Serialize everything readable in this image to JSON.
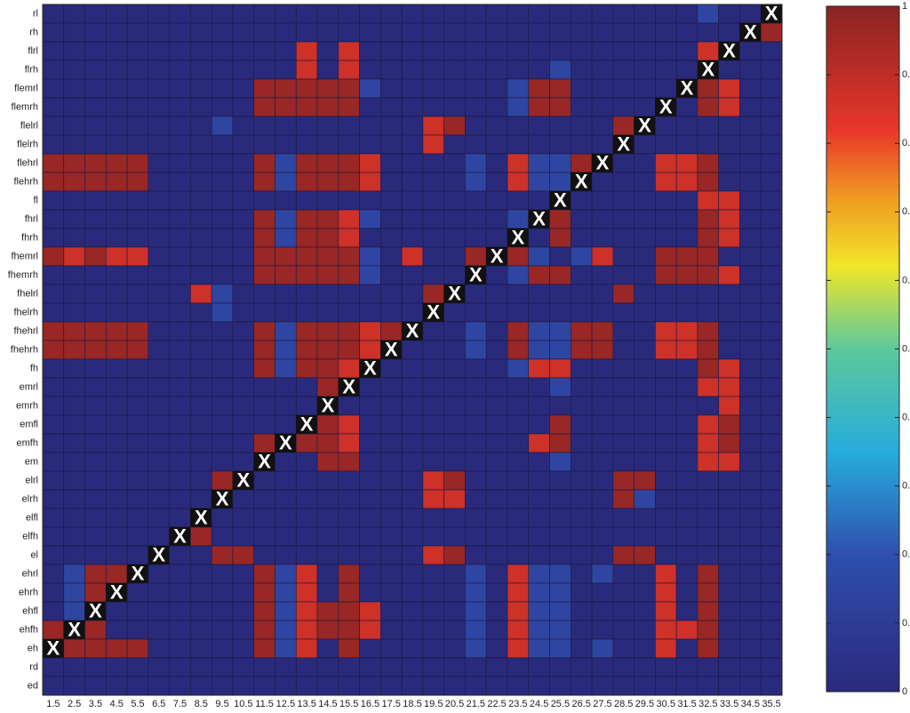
{
  "chart_data": {
    "type": "heatmap",
    "diagonal_marker": "X",
    "x": [
      1.5,
      2.5,
      3.5,
      4.5,
      5.5,
      6.5,
      7.5,
      8.5,
      9.5,
      10.5,
      11.5,
      12.5,
      13.5,
      14.5,
      15.5,
      16.5,
      17.5,
      18.5,
      19.5,
      20.5,
      21.5,
      22.5,
      23.5,
      24.5,
      25.5,
      26.5,
      27.5,
      28.5,
      29.5,
      30.5,
      31.5,
      32.5,
      33.5,
      34.5,
      35.5
    ],
    "y": [
      "rl",
      "rh",
      "flrl",
      "flrh",
      "flemrl",
      "flemrh",
      "flelrl",
      "flelrh",
      "flehrl",
      "flehrh",
      "fl",
      "fhrl",
      "fhrh",
      "fhemrl",
      "fhemrh",
      "fhelrl",
      "fhelrh",
      "fhehrl",
      "fhehrh",
      "fh",
      "emrl",
      "emrh",
      "emfl",
      "emfh",
      "em",
      "elrl",
      "elrh",
      "elfl",
      "elfh",
      "el",
      "ehrl",
      "ehrh",
      "ehfl",
      "ehfh",
      "eh",
      "rd",
      "ed"
    ],
    "z": [
      [
        0,
        0,
        0,
        0,
        0,
        0,
        0,
        0,
        0,
        0,
        0,
        0,
        0,
        0,
        0,
        0,
        0,
        0,
        0,
        0,
        0,
        0,
        0,
        0,
        0,
        0,
        0,
        0,
        0,
        0,
        0,
        0.15,
        0,
        0,
        null
      ],
      [
        0,
        0,
        0,
        0,
        0,
        0,
        0,
        0,
        0,
        0,
        0,
        0,
        0,
        0,
        0,
        0,
        0,
        0,
        0,
        0,
        0,
        0,
        0,
        0,
        0,
        0,
        0,
        0,
        0,
        0,
        0,
        0,
        0,
        null,
        0.97
      ],
      [
        0,
        0,
        0,
        0,
        0,
        0,
        0,
        0,
        0,
        0,
        0,
        0,
        0.87,
        0,
        0.87,
        0,
        0,
        0,
        0,
        0,
        0,
        0,
        0,
        0,
        0,
        0,
        0,
        0,
        0,
        0,
        0,
        0.87,
        null,
        0,
        0
      ],
      [
        0,
        0,
        0,
        0,
        0,
        0,
        0,
        0,
        0,
        0,
        0,
        0,
        0.87,
        0,
        0.87,
        0,
        0,
        0,
        0,
        0,
        0,
        0,
        0,
        0,
        0.15,
        0,
        0,
        0,
        0,
        0,
        0,
        null,
        0,
        0,
        0
      ],
      [
        0,
        0,
        0,
        0,
        0,
        0,
        0,
        0,
        0,
        0,
        0.97,
        0.97,
        0.97,
        0.97,
        0.97,
        0.15,
        0,
        0,
        0,
        0,
        0,
        0,
        0.15,
        0.97,
        0.97,
        0,
        0,
        0,
        0,
        0,
        null,
        0.97,
        0.87,
        0,
        0
      ],
      [
        0,
        0,
        0,
        0,
        0,
        0,
        0,
        0,
        0,
        0,
        0.97,
        0.97,
        0.97,
        0.97,
        0.97,
        0,
        0,
        0,
        0,
        0,
        0,
        0,
        0.15,
        0.97,
        0.97,
        0,
        0,
        0,
        0,
        null,
        0,
        0.97,
        0.87,
        0,
        0
      ],
      [
        0,
        0,
        0,
        0,
        0,
        0,
        0,
        0,
        0.15,
        0,
        0,
        0,
        0,
        0,
        0,
        0,
        0,
        0,
        0.87,
        0.97,
        0,
        0,
        0,
        0,
        0,
        0,
        0,
        0.97,
        null,
        0,
        0,
        0,
        0,
        0,
        0
      ],
      [
        0,
        0,
        0,
        0,
        0,
        0,
        0,
        0,
        0,
        0,
        0,
        0,
        0,
        0,
        0,
        0,
        0,
        0,
        0.87,
        0,
        0,
        0,
        0,
        0,
        0,
        0,
        0,
        null,
        0,
        0,
        0,
        0,
        0,
        0,
        0
      ],
      [
        0.97,
        0.97,
        0.97,
        0.97,
        0.97,
        0,
        0,
        0,
        0,
        0,
        0.97,
        0.15,
        0.97,
        0.97,
        0.97,
        0.87,
        0,
        0,
        0,
        0,
        0.15,
        0,
        0.87,
        0.15,
        0.15,
        0.97,
        null,
        0,
        0,
        0.87,
        0.87,
        0.97,
        0,
        0,
        0
      ],
      [
        0.97,
        0.97,
        0.97,
        0.97,
        0.97,
        0,
        0,
        0,
        0,
        0,
        0.97,
        0.15,
        0.97,
        0.97,
        0.97,
        0.87,
        0,
        0,
        0,
        0,
        0.15,
        0,
        0.87,
        0.15,
        0.15,
        null,
        0,
        0,
        0,
        0.87,
        0.87,
        0.97,
        0,
        0,
        0
      ],
      [
        0,
        0,
        0,
        0,
        0,
        0,
        0,
        0,
        0,
        0,
        0,
        0,
        0,
        0,
        0,
        0,
        0,
        0,
        0,
        0,
        0,
        0,
        0,
        0,
        null,
        0,
        0,
        0,
        0,
        0,
        0,
        0.87,
        0.87,
        0,
        0
      ],
      [
        0,
        0,
        0,
        0,
        0,
        0,
        0,
        0,
        0,
        0,
        0.97,
        0.15,
        0.97,
        0.97,
        0.87,
        0.15,
        0,
        0,
        0,
        0,
        0,
        0,
        0.15,
        null,
        0.97,
        0,
        0,
        0,
        0,
        0,
        0,
        0.97,
        0.87,
        0,
        0
      ],
      [
        0,
        0,
        0,
        0,
        0,
        0,
        0,
        0,
        0,
        0,
        0.97,
        0.15,
        0.97,
        0.97,
        0.87,
        0,
        0,
        0,
        0,
        0,
        0,
        0,
        null,
        0,
        0.97,
        0,
        0,
        0,
        0,
        0,
        0,
        0.97,
        0.87,
        0,
        0
      ],
      [
        0.97,
        0.87,
        0.97,
        0.87,
        0.87,
        0,
        0,
        0,
        0,
        0,
        0.97,
        0.97,
        0.97,
        0.97,
        0.97,
        0.15,
        0,
        0.87,
        0,
        0,
        0.97,
        null,
        0.97,
        0.15,
        0,
        0.15,
        0.87,
        0,
        0,
        0.97,
        0.97,
        0.97,
        0,
        0,
        0
      ],
      [
        0,
        0,
        0,
        0,
        0,
        0,
        0,
        0,
        0,
        0,
        0.97,
        0.97,
        0.97,
        0.97,
        0.97,
        0.15,
        0,
        0,
        0,
        0,
        null,
        0,
        0.15,
        0.97,
        0.97,
        0,
        0,
        0,
        0,
        0.97,
        0.97,
        0.97,
        0.87,
        0,
        0
      ],
      [
        0,
        0,
        0,
        0,
        0,
        0,
        0,
        0.87,
        0.15,
        0,
        0,
        0,
        0,
        0,
        0,
        0,
        0,
        0,
        0.97,
        null,
        0,
        0,
        0,
        0,
        0,
        0,
        0,
        0.97,
        0,
        0,
        0,
        0,
        0,
        0,
        0
      ],
      [
        0,
        0,
        0,
        0,
        0,
        0,
        0,
        0,
        0.15,
        0,
        0,
        0,
        0,
        0,
        0,
        0,
        0,
        0,
        null,
        0,
        0,
        0,
        0,
        0,
        0,
        0,
        0,
        0,
        0,
        0,
        0,
        0,
        0,
        0,
        0
      ],
      [
        0.97,
        0.97,
        0.97,
        0.97,
        0.97,
        0,
        0,
        0,
        0,
        0,
        0.97,
        0.15,
        0.97,
        0.97,
        0.97,
        0.87,
        0.97,
        null,
        0,
        0,
        0.15,
        0,
        0.97,
        0.15,
        0.15,
        0.97,
        0.97,
        0,
        0,
        0.87,
        0.87,
        0.97,
        0,
        0,
        0
      ],
      [
        0.97,
        0.97,
        0.97,
        0.97,
        0.97,
        0,
        0,
        0,
        0,
        0,
        0.97,
        0.15,
        0.97,
        0.97,
        0.97,
        0.87,
        null,
        0,
        0,
        0,
        0.15,
        0,
        0.97,
        0.15,
        0.15,
        0.97,
        0.97,
        0,
        0,
        0.87,
        0.87,
        0.97,
        0,
        0,
        0
      ],
      [
        0,
        0,
        0,
        0,
        0,
        0,
        0,
        0,
        0,
        0,
        0.97,
        0.15,
        0.97,
        0.97,
        0.87,
        null,
        0,
        0,
        0,
        0,
        0,
        0,
        0.15,
        0.87,
        0.87,
        0,
        0,
        0,
        0,
        0,
        0,
        0.97,
        0.87,
        0,
        0
      ],
      [
        0,
        0,
        0,
        0,
        0,
        0,
        0,
        0,
        0,
        0,
        0,
        0,
        0,
        0.97,
        null,
        0,
        0,
        0,
        0,
        0,
        0,
        0,
        0,
        0,
        0.15,
        0,
        0,
        0,
        0,
        0,
        0,
        0.87,
        0.87,
        0,
        0
      ],
      [
        0,
        0,
        0,
        0,
        0,
        0,
        0,
        0,
        0,
        0,
        0,
        0,
        0,
        null,
        0,
        0,
        0,
        0,
        0,
        0,
        0,
        0,
        0,
        0,
        0,
        0,
        0,
        0,
        0,
        0,
        0,
        0,
        0.87,
        0,
        0
      ],
      [
        0,
        0,
        0,
        0,
        0,
        0,
        0,
        0,
        0,
        0,
        0,
        0,
        null,
        0.97,
        0.87,
        0,
        0,
        0,
        0,
        0,
        0,
        0,
        0,
        0,
        0.97,
        0,
        0,
        0,
        0,
        0,
        0,
        0.87,
        0.97,
        0,
        0
      ],
      [
        0,
        0,
        0,
        0,
        0,
        0,
        0,
        0,
        0,
        0,
        0.97,
        null,
        0.97,
        0.97,
        0.87,
        0,
        0,
        0,
        0,
        0,
        0,
        0,
        0,
        0.87,
        0.97,
        0,
        0,
        0,
        0,
        0,
        0,
        0.87,
        0.97,
        0,
        0
      ],
      [
        0,
        0,
        0,
        0,
        0,
        0,
        0,
        0,
        0,
        0,
        null,
        0,
        0,
        0.97,
        0.97,
        0,
        0,
        0,
        0,
        0,
        0,
        0,
        0,
        0,
        0.15,
        0,
        0,
        0,
        0,
        0,
        0,
        0.87,
        0.87,
        0,
        0
      ],
      [
        0,
        0,
        0,
        0,
        0,
        0,
        0,
        0,
        0.97,
        null,
        0,
        0,
        0,
        0,
        0,
        0,
        0,
        0,
        0.87,
        0.97,
        0,
        0,
        0,
        0,
        0,
        0,
        0,
        0.97,
        0.97,
        0,
        0,
        0,
        0,
        0,
        0
      ],
      [
        0,
        0,
        0,
        0,
        0,
        0,
        0,
        0,
        null,
        0,
        0,
        0,
        0,
        0,
        0,
        0,
        0,
        0,
        0.87,
        0.87,
        0,
        0,
        0,
        0,
        0,
        0,
        0,
        0.97,
        0.15,
        0,
        0,
        0,
        0,
        0,
        0
      ],
      [
        0,
        0,
        0,
        0,
        0,
        0,
        0,
        null,
        0,
        0,
        0,
        0,
        0,
        0,
        0,
        0,
        0,
        0,
        0,
        0,
        0,
        0,
        0,
        0,
        0,
        0,
        0,
        0,
        0,
        0,
        0,
        0,
        0,
        0,
        0
      ],
      [
        0,
        0,
        0,
        0,
        0,
        0,
        null,
        0.97,
        0,
        0,
        0,
        0,
        0,
        0,
        0,
        0,
        0,
        0,
        0,
        0,
        0,
        0,
        0,
        0,
        0,
        0,
        0,
        0,
        0,
        0,
        0,
        0,
        0,
        0,
        0
      ],
      [
        0,
        0,
        0,
        0,
        0,
        null,
        0,
        0,
        0.97,
        0.97,
        0,
        0,
        0,
        0,
        0,
        0,
        0,
        0,
        0.87,
        0.97,
        0,
        0,
        0,
        0,
        0,
        0,
        0,
        0.97,
        0.97,
        0,
        0,
        0,
        0,
        0,
        0
      ],
      [
        0,
        0.15,
        0.97,
        0.97,
        null,
        0,
        0,
        0,
        0,
        0,
        0.97,
        0.15,
        0.87,
        0,
        0.97,
        0,
        0,
        0,
        0,
        0,
        0.15,
        0,
        0.87,
        0.15,
        0.15,
        0,
        0.15,
        0,
        0,
        0.87,
        0,
        0.97,
        0,
        0,
        0
      ],
      [
        0,
        0.15,
        0.97,
        null,
        0,
        0,
        0,
        0,
        0,
        0,
        0.97,
        0.15,
        0.87,
        0,
        0.97,
        0,
        0,
        0,
        0,
        0,
        0.15,
        0,
        0.87,
        0.15,
        0.15,
        0,
        0,
        0,
        0,
        0.87,
        0,
        0.97,
        0,
        0,
        0
      ],
      [
        0,
        0.15,
        null,
        0,
        0,
        0,
        0,
        0,
        0,
        0,
        0.97,
        0.15,
        0.87,
        0.97,
        0.97,
        0.87,
        0,
        0,
        0,
        0,
        0.15,
        0,
        0.87,
        0.15,
        0.15,
        0,
        0,
        0,
        0,
        0.87,
        0,
        0.97,
        0,
        0,
        0
      ],
      [
        0.97,
        null,
        0.97,
        0,
        0,
        0,
        0,
        0,
        0,
        0,
        0.97,
        0.15,
        0.87,
        0.97,
        0.97,
        0.87,
        0,
        0,
        0,
        0,
        0.15,
        0,
        0.87,
        0.15,
        0.15,
        0,
        0,
        0,
        0,
        0.87,
        0.87,
        0.97,
        0,
        0,
        0
      ],
      [
        null,
        0.97,
        0.97,
        0.97,
        0.97,
        0,
        0,
        0,
        0,
        0,
        0.97,
        0.15,
        0.87,
        0,
        0.97,
        0,
        0,
        0,
        0,
        0,
        0.15,
        0,
        0.87,
        0.15,
        0.15,
        0,
        0.15,
        0,
        0,
        0.87,
        0,
        0.97,
        0,
        0,
        0
      ],
      [
        0,
        0,
        0,
        0,
        0,
        0,
        0,
        0,
        0,
        0,
        0,
        0,
        0,
        0,
        0,
        0,
        0,
        0,
        0,
        0,
        0,
        0,
        0,
        0,
        0,
        0,
        0,
        0,
        0,
        0,
        0,
        0,
        0,
        0,
        0
      ],
      [
        0,
        0,
        0,
        0,
        0,
        0,
        0,
        0,
        0,
        0,
        0,
        0,
        0,
        0,
        0,
        0,
        0,
        0,
        0,
        0,
        0,
        0,
        0,
        0,
        0,
        0,
        0,
        0,
        0,
        0,
        0,
        0,
        0,
        0,
        0
      ]
    ],
    "zlim": [
      0,
      1
    ],
    "zticks": [
      0,
      0.1,
      0.2,
      0.3,
      0.4,
      0.5,
      0.6,
      0.7,
      0.8,
      0.9,
      1
    ],
    "colormap": [
      [
        0,
        "#2a2a7c"
      ],
      [
        0.2,
        "#2f4fae"
      ],
      [
        0.35,
        "#27acdc"
      ],
      [
        0.5,
        "#5cc89c"
      ],
      [
        0.62,
        "#f0e62a"
      ],
      [
        0.72,
        "#f09a22"
      ],
      [
        0.82,
        "#e8362a"
      ],
      [
        1,
        "#882424"
      ]
    ]
  }
}
